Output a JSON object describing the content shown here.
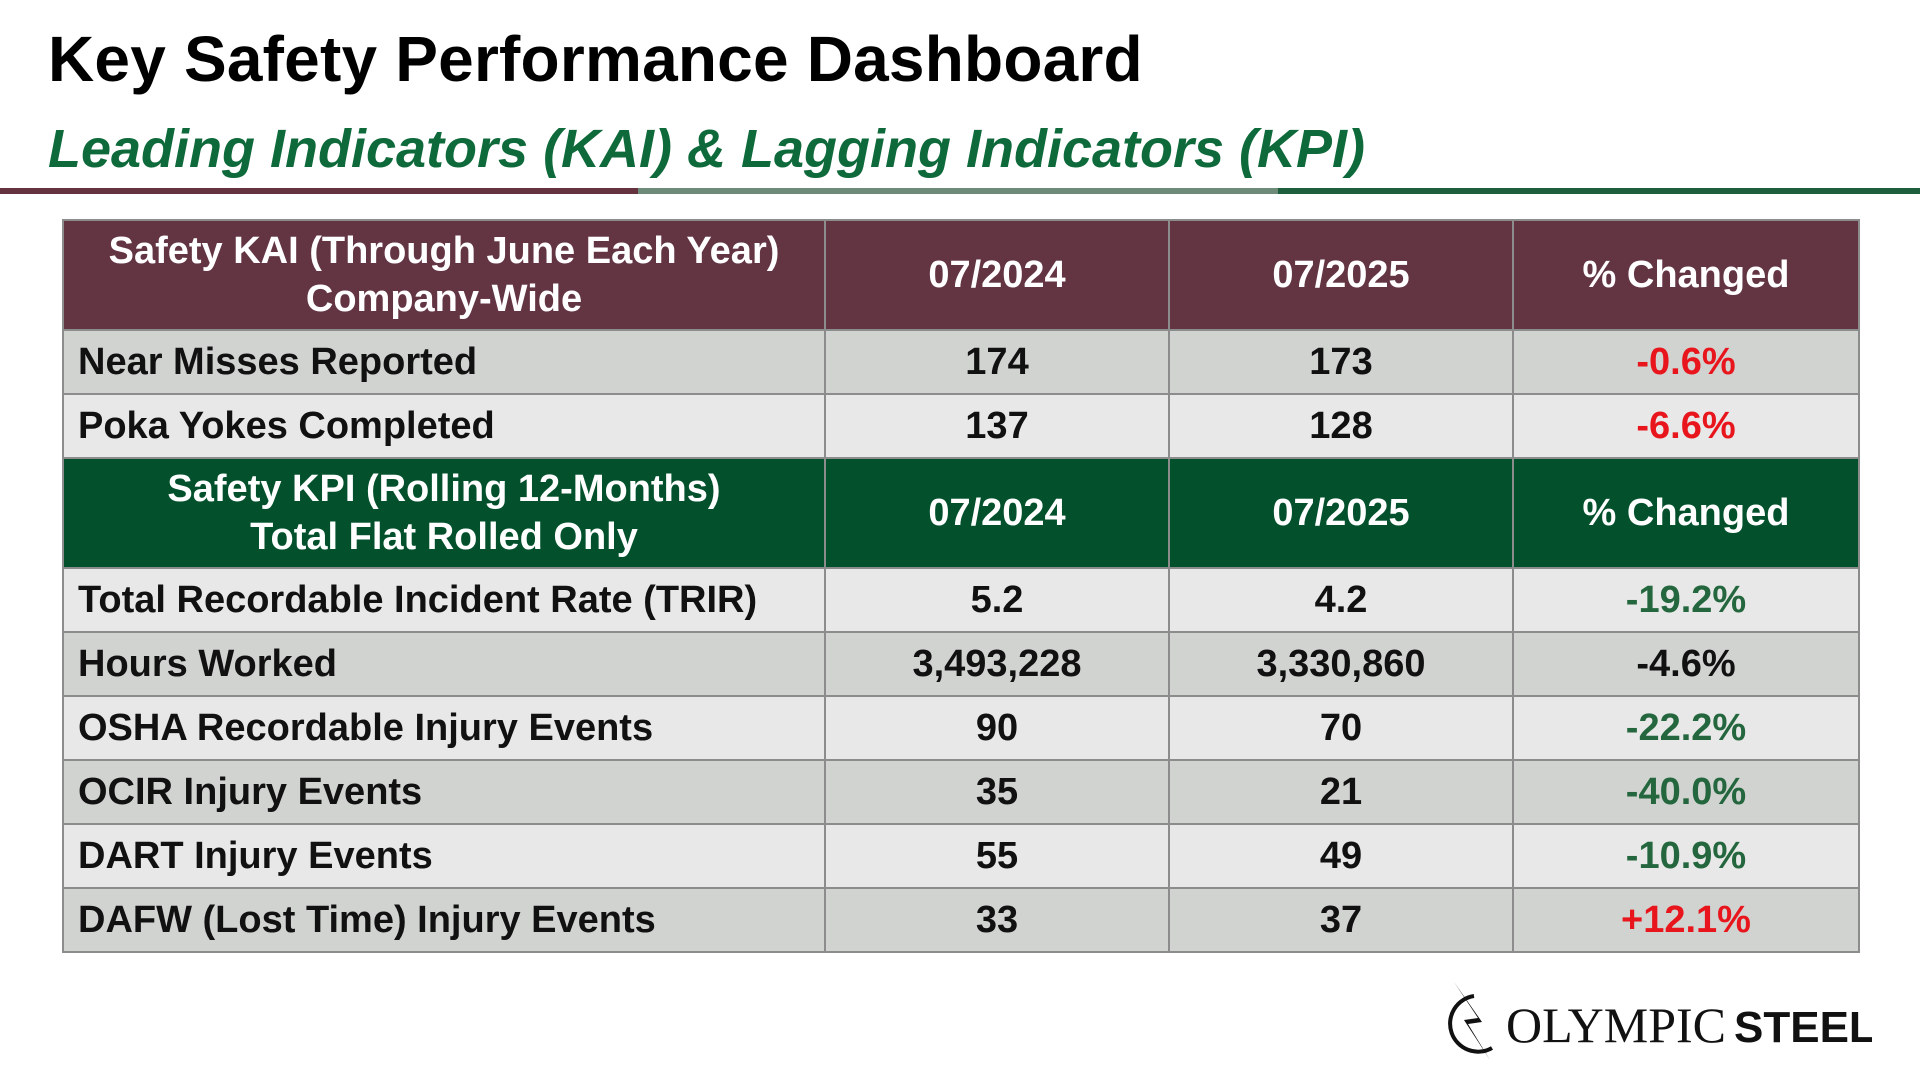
{
  "header": {
    "title": "Key Safety Performance Dashboard",
    "subtitle": "Leading Indicators (KAI) & Lagging Indicators (KPI)"
  },
  "kai": {
    "heading_line1": "Safety KAI (Through June Each Year)",
    "heading_line2": "Company-Wide",
    "col_2024": "07/2024",
    "col_2025": "07/2025",
    "col_change": "% Changed",
    "rows": [
      {
        "label": "Near Misses Reported",
        "v2024": "174",
        "v2025": "173",
        "change": "-0.6%"
      },
      {
        "label": "Poka Yokes Completed",
        "v2024": "137",
        "v2025": "128",
        "change": "-6.6%"
      }
    ]
  },
  "kpi": {
    "heading_line1": "Safety KPI (Rolling 12-Months)",
    "heading_line2": "Total Flat Rolled Only",
    "col_2024": "07/2024",
    "col_2025": "07/2025",
    "col_change": "% Changed",
    "rows": [
      {
        "label": "Total Recordable Incident Rate (TRIR)",
        "v2024": "5.2",
        "v2025": "4.2",
        "change": "-19.2%"
      },
      {
        "label": "Hours Worked",
        "v2024": "3,493,228",
        "v2025": "3,330,860",
        "change": "-4.6%"
      },
      {
        "label": "OSHA Recordable Injury Events",
        "v2024": "90",
        "v2025": "70",
        "change": "-22.2%"
      },
      {
        "label": "OCIR Injury Events",
        "v2024": "35",
        "v2025": "21",
        "change": "-40.0%"
      },
      {
        "label": "DART Injury Events",
        "v2024": "55",
        "v2025": "49",
        "change": "-10.9%"
      },
      {
        "label": "DAFW (Lost Time) Injury Events",
        "v2024": "33",
        "v2025": "37",
        "change": "+12.1%"
      }
    ]
  },
  "logo": {
    "text_light": "OLYMPIC",
    "text_bold": "STEEL"
  },
  "colors": {
    "maroon": "#633543",
    "green": "#03512c",
    "red": "#e8161c",
    "text_green": "#24663d"
  }
}
